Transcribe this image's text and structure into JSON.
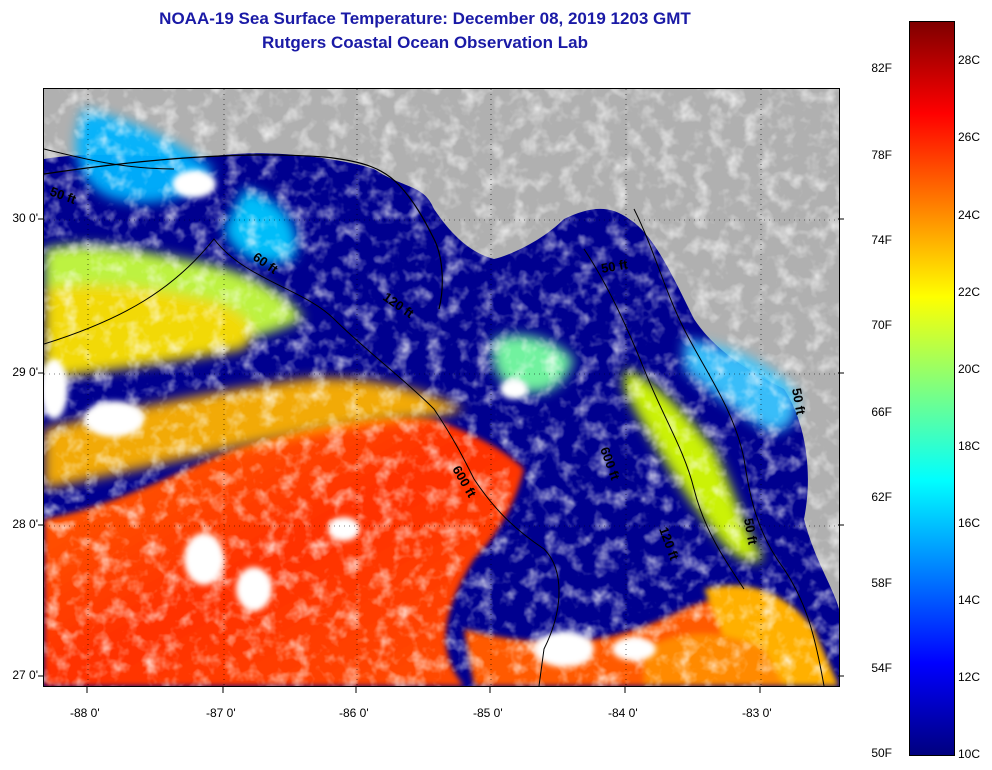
{
  "title": {
    "line1": "NOAA-19 Sea Surface Temperature:  December 08, 2019 1203 GMT",
    "line2": "Rutgers Coastal Ocean Observation Lab"
  },
  "map": {
    "lat_ticks": [
      "30 0'",
      "29 0'",
      "28 0'",
      "27 0'"
    ],
    "lon_ticks": [
      "-88 0'",
      "-87 0'",
      "-86 0'",
      "-85 0'",
      "-84 0'",
      "-83 0'"
    ],
    "contour_labels": [
      "50 ft",
      "60 ft",
      "120 ft",
      "600 ft",
      "50 ft",
      "120 ft",
      "50 ft",
      "50 ft",
      "600 ft"
    ],
    "colors": {
      "land": "#b0b0b0",
      "cloud": "#ffffff",
      "cold": "#00008f",
      "warm": "#ff3c00"
    }
  },
  "colorbar": {
    "fahrenheit": [
      "82F",
      "78F",
      "74F",
      "70F",
      "66F",
      "62F",
      "58F",
      "54F",
      "50F"
    ],
    "celsius": [
      "28C",
      "26C",
      "24C",
      "22C",
      "20C",
      "18C",
      "16C",
      "14C",
      "12C",
      "10C"
    ]
  }
}
